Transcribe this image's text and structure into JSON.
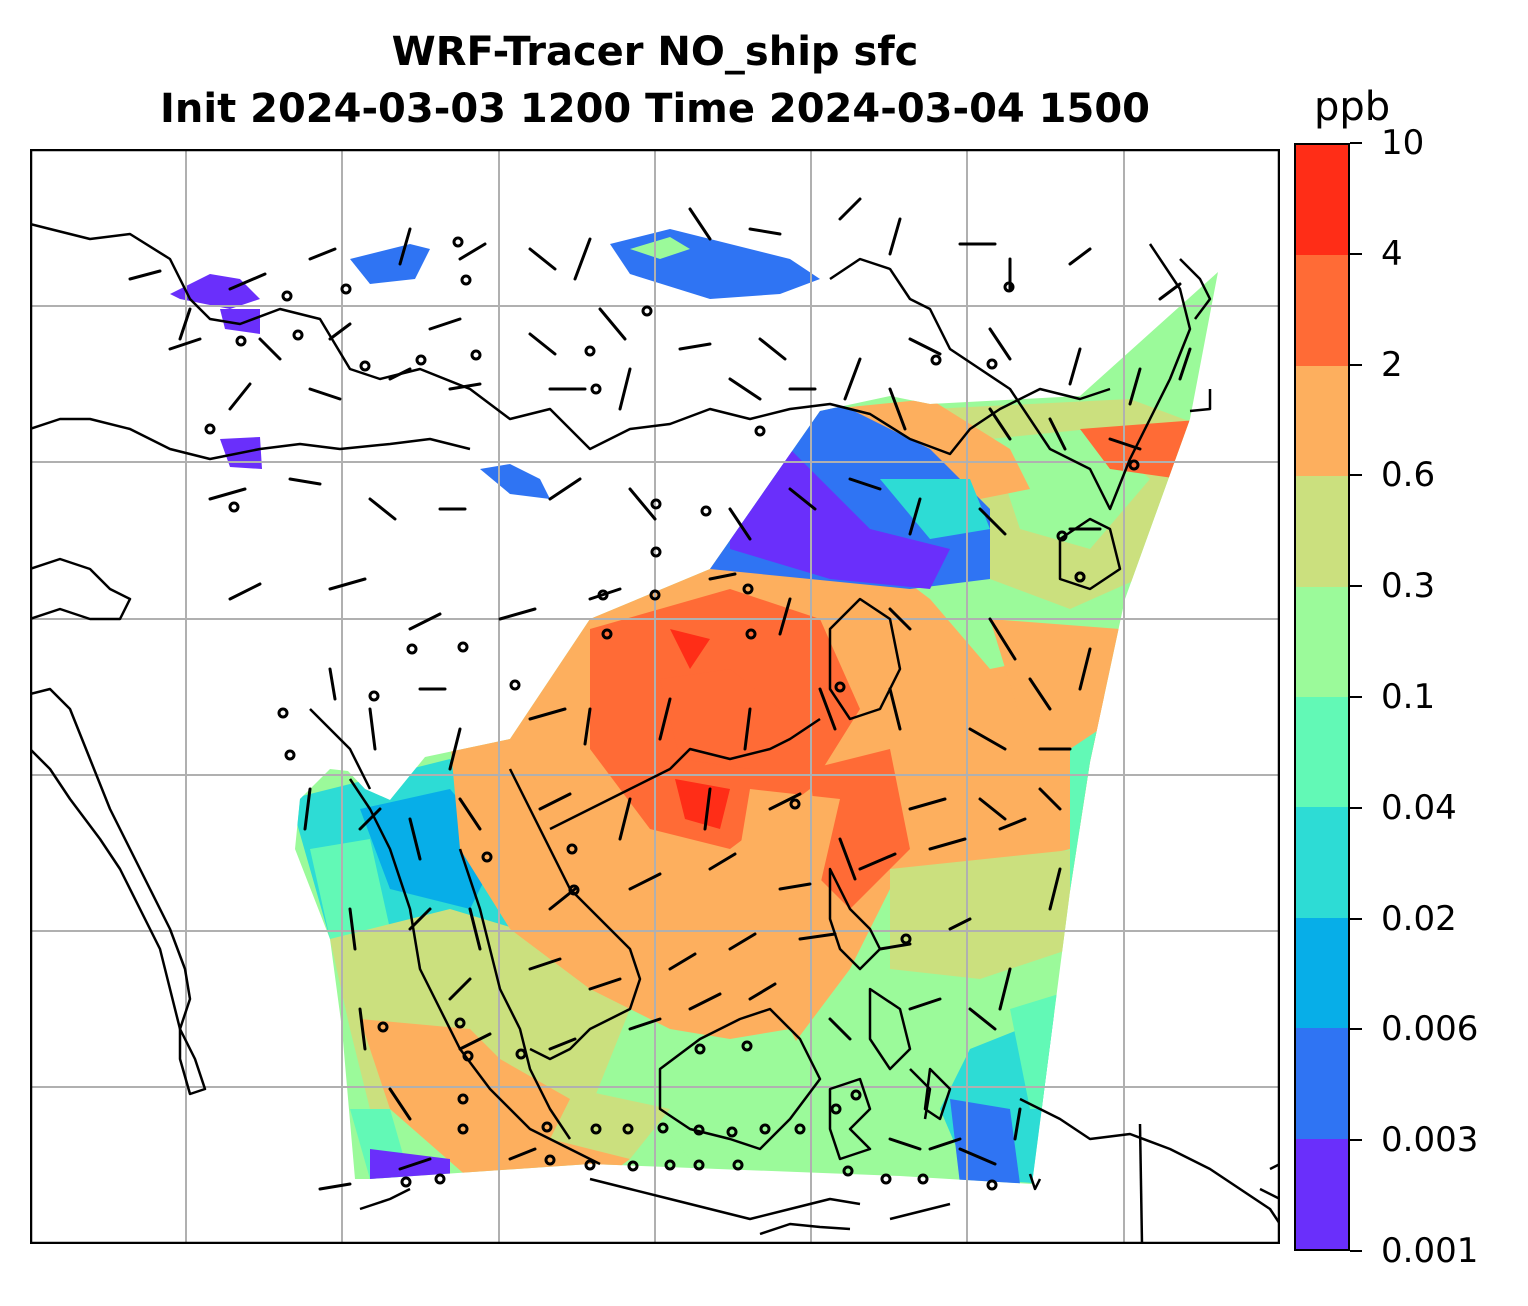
{
  "title": {
    "line1": "WRF-Tracer NO_ship sfc",
    "line2": "Init 2024-03-03 1200 Time 2024-03-04 1500"
  },
  "colorbar": {
    "unit": "ppb",
    "levels": [
      "0.001",
      "0.003",
      "0.006",
      "0.02",
      "0.04",
      "0.1",
      "0.3",
      "0.6",
      "2",
      "4",
      "10"
    ],
    "colors": [
      "#6a2ffb",
      "#2f74f3",
      "#07aee8",
      "#2ddcd5",
      "#62f9b6",
      "#9bfa9a",
      "#cbe07e",
      "#fdaf5e",
      "#ff6b36",
      "#ff2d17"
    ]
  },
  "map": {
    "projection": "lambert-conformal",
    "region": "East and Southeast Asia",
    "gridlines": true,
    "coastlines": true,
    "wind_barbs": true,
    "field_colors": {
      "very_low": "#6a2ffb",
      "low": "#2f74f3",
      "cyan": "#2ddcd5",
      "aqua": "#62f9b6",
      "green": "#9bfa9a",
      "yellowgreen": "#cbe07e",
      "orange": "#fdaf5e",
      "darkorange": "#ff6b36",
      "red": "#ff2d17"
    }
  }
}
